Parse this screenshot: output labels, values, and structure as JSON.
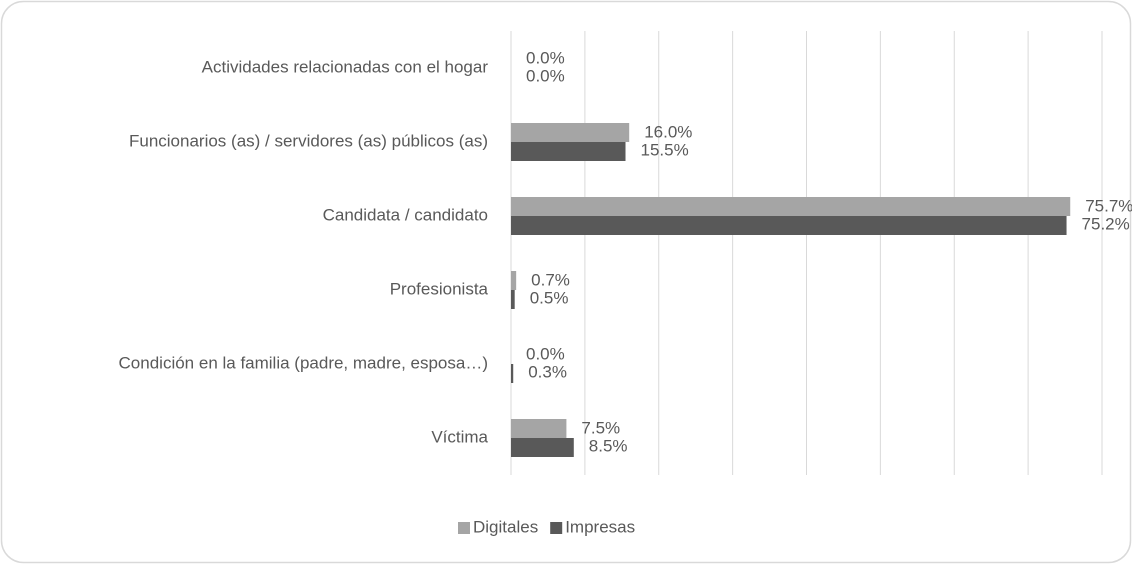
{
  "chart_data": {
    "type": "barh",
    "categories": [
      "Actividades relacionadas con el hogar",
      "Funcionarios (as) / servidores (as) públicos (as)",
      "Candidata / candidato",
      "Profesionista",
      "Condición en la familia (padre, madre, esposa…)",
      "Víctima"
    ],
    "series": [
      {
        "name": "Digitales",
        "color": "#a5a5a5",
        "values": [
          0.0,
          16.0,
          75.7,
          0.7,
          0.0,
          7.5
        ],
        "value_labels": [
          "0.0%",
          "16.0%",
          "75.7%",
          "0.7%",
          "0.0%",
          "7.5%"
        ]
      },
      {
        "name": "Impresas",
        "color": "#595959",
        "values": [
          0.0,
          15.5,
          75.2,
          0.5,
          0.3,
          8.5
        ],
        "value_labels": [
          "0.0%",
          "15.5%",
          "75.2%",
          "0.5%",
          "0.3%",
          "8.5%"
        ]
      }
    ],
    "xlim": [
      0,
      80
    ],
    "xticks": [
      0,
      10,
      20,
      30,
      40,
      50,
      60,
      70,
      80
    ],
    "grid": true,
    "legend": "bottom"
  }
}
